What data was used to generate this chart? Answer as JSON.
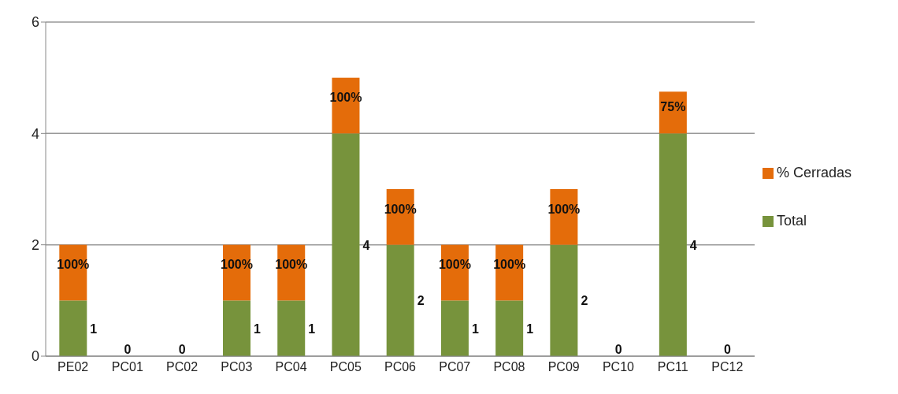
{
  "chart_data": {
    "type": "bar",
    "stacked": true,
    "categories": [
      "PE02",
      "PC01",
      "PC02",
      "PC03",
      "PC04",
      "PC05",
      "PC06",
      "PC07",
      "PC08",
      "PC09",
      "PC10",
      "PC11",
      "PC12"
    ],
    "series": [
      {
        "name": "Total",
        "color": "#77933c",
        "values": [
          1,
          0,
          0,
          1,
          1,
          4,
          2,
          1,
          1,
          2,
          0,
          4,
          0
        ],
        "value_labels": [
          "1",
          "0",
          "0",
          "1",
          "1",
          "4",
          "2",
          "1",
          "1",
          "2",
          "0",
          "4",
          "0"
        ]
      },
      {
        "name": "% Cerradas",
        "color": "#e46c0a",
        "values": [
          1,
          0,
          0,
          1,
          1,
          1,
          1,
          1,
          1,
          1,
          0,
          0.75,
          0
        ],
        "value_labels": [
          "100%",
          null,
          null,
          "100%",
          "100%",
          "100%",
          "100%",
          "100%",
          "100%",
          "100%",
          null,
          "75%",
          null
        ]
      }
    ],
    "ylim": [
      0,
      6
    ],
    "yticks": [
      0,
      2,
      4,
      6
    ],
    "grid": "y",
    "legend": "right"
  }
}
